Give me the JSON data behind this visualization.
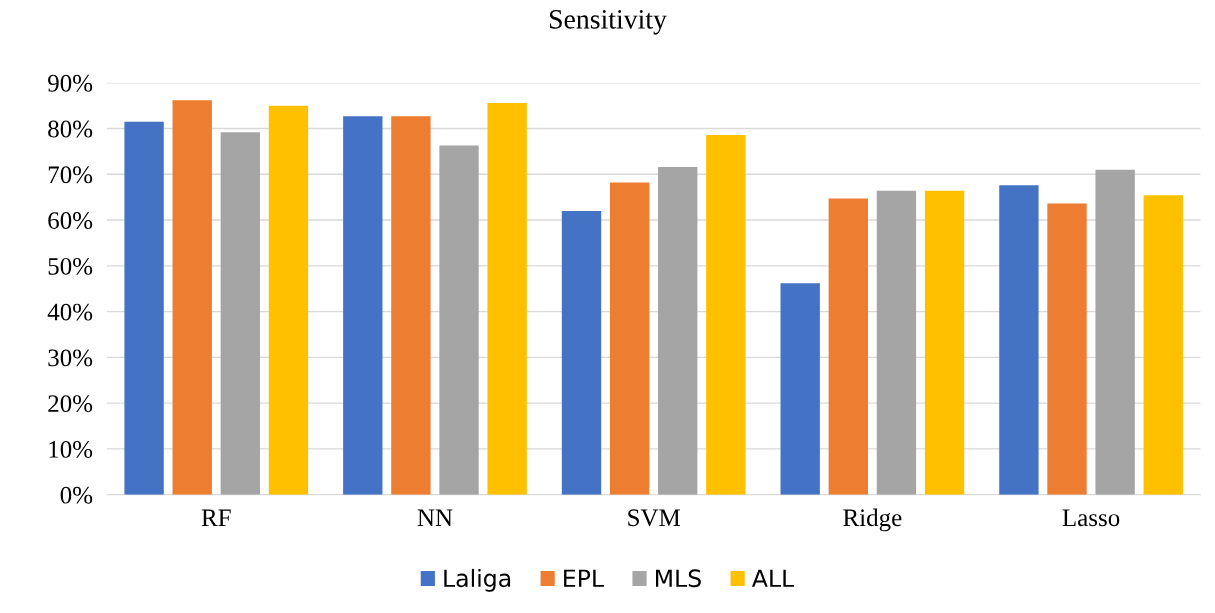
{
  "chart_data": {
    "type": "bar",
    "title": "Sensitivity",
    "categories": [
      "RF",
      "NN",
      "SVM",
      "Ridge",
      "Lasso"
    ],
    "series": [
      {
        "name": "Laliga",
        "color": "#4472c4",
        "values": [
          81.5,
          82.7,
          62,
          46.2,
          67.6
        ]
      },
      {
        "name": "EPL",
        "color": "#ed7d31",
        "values": [
          86.2,
          82.7,
          68.2,
          64.7,
          63.6
        ]
      },
      {
        "name": "MLS",
        "color": "#a5a5a5",
        "values": [
          79.2,
          76.3,
          71.6,
          66.4,
          71
        ]
      },
      {
        "name": "ALL",
        "color": "#ffc000",
        "values": [
          85,
          85.6,
          78.6,
          66.4,
          65.4
        ]
      }
    ],
    "ylim": [
      0,
      90
    ],
    "yticks": [
      {
        "value": 0,
        "label": "0%"
      },
      {
        "value": 10,
        "label": "10%"
      },
      {
        "value": 20,
        "label": "20%"
      },
      {
        "value": 30,
        "label": "30%"
      },
      {
        "value": 40,
        "label": "40%"
      },
      {
        "value": 50,
        "label": "50%"
      },
      {
        "value": 60,
        "label": "60%"
      },
      {
        "value": 70,
        "label": "70%"
      },
      {
        "value": 80,
        "label": "80%"
      },
      {
        "value": 90,
        "label": "90%"
      }
    ],
    "grid": "y",
    "legend": "bottom"
  }
}
